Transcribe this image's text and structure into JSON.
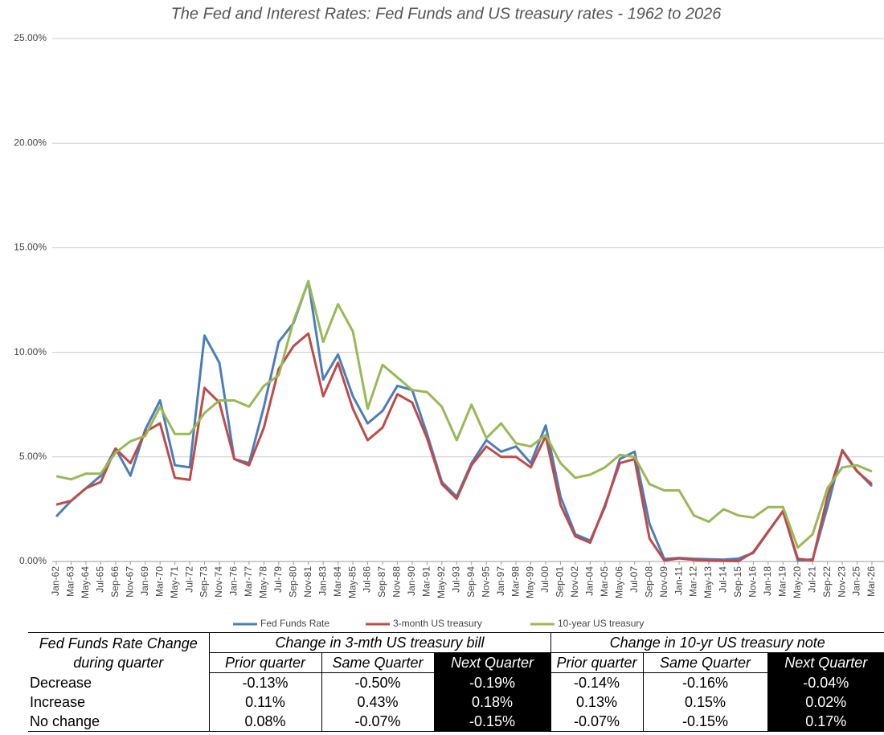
{
  "chart_data": {
    "type": "line",
    "title": "The Fed and Interest Rates: Fed Funds and US treasury rates - 1962 to 2026",
    "categories": [
      "Jan-62",
      "Mar-63",
      "May-64",
      "Jul-65",
      "Sep-66",
      "Nov-67",
      "Jan-69",
      "Mar-70",
      "May-71",
      "Jul-72",
      "Sep-73",
      "Nov-74",
      "Jan-76",
      "Mar-77",
      "May-78",
      "Jul-79",
      "Sep-80",
      "Nov-81",
      "Jan-83",
      "Mar-84",
      "May-85",
      "Jul-86",
      "Sep-87",
      "Nov-88",
      "Jan-90",
      "Mar-91",
      "May-92",
      "Jul-93",
      "Sep-94",
      "Nov-95",
      "Jan-97",
      "Mar-98",
      "May-99",
      "Jul-00",
      "Sep-01",
      "Nov-02",
      "Jan-04",
      "Mar-05",
      "May-06",
      "Jul-07",
      "Sep-08",
      "Nov-09",
      "Jan-11",
      "Mar-12",
      "May-13",
      "Jul-14",
      "Sep-15",
      "Nov-16",
      "Jan-18",
      "Mar-19",
      "May-20",
      "Jul-21",
      "Sep-22",
      "Nov-23",
      "Jan-25",
      "Mar-26"
    ],
    "series": [
      {
        "name": "Fed Funds Rate",
        "color": "#4a7ebb",
        "values": [
          2.15,
          2.9,
          3.5,
          4.1,
          5.4,
          4.1,
          6.3,
          7.7,
          4.6,
          4.5,
          10.8,
          9.5,
          4.9,
          4.7,
          7.4,
          10.5,
          11.4,
          13.4,
          8.7,
          9.9,
          7.9,
          6.6,
          7.2,
          8.4,
          8.2,
          6.1,
          3.8,
          3.1,
          4.7,
          5.8,
          5.25,
          5.5,
          4.7,
          6.5,
          3.1,
          1.3,
          1.0,
          2.6,
          4.9,
          5.25,
          1.8,
          0.12,
          0.17,
          0.13,
          0.11,
          0.09,
          0.14,
          0.41,
          1.41,
          2.41,
          0.05,
          0.1,
          2.6,
          5.33,
          4.33,
          3.6
        ]
      },
      {
        "name": "3-month  US treasury",
        "color": "#be4b48",
        "values": [
          2.72,
          2.9,
          3.5,
          3.8,
          5.4,
          4.7,
          6.2,
          6.6,
          4.0,
          3.9,
          8.3,
          7.6,
          4.9,
          4.6,
          6.4,
          9.2,
          10.3,
          10.9,
          7.9,
          9.5,
          7.3,
          5.8,
          6.4,
          8.0,
          7.6,
          5.9,
          3.7,
          3.0,
          4.6,
          5.5,
          5.0,
          5.0,
          4.5,
          6.0,
          2.7,
          1.2,
          0.9,
          2.7,
          4.7,
          4.9,
          1.1,
          0.05,
          0.15,
          0.08,
          0.04,
          0.03,
          0.02,
          0.45,
          1.43,
          2.4,
          0.13,
          0.05,
          3.1,
          5.3,
          4.3,
          3.7
        ]
      },
      {
        "name": "10-year US treasury",
        "color": "#98b954",
        "values": [
          4.08,
          3.93,
          4.2,
          4.2,
          5.2,
          5.75,
          6.0,
          7.4,
          6.1,
          6.1,
          7.1,
          7.7,
          7.7,
          7.4,
          8.4,
          8.9,
          11.5,
          13.4,
          10.5,
          12.3,
          11.0,
          7.3,
          9.4,
          8.8,
          8.2,
          8.1,
          7.4,
          5.8,
          7.5,
          5.9,
          6.6,
          5.65,
          5.5,
          6.05,
          4.7,
          4.0,
          4.15,
          4.5,
          5.1,
          5.0,
          3.7,
          3.4,
          3.4,
          2.2,
          1.9,
          2.5,
          2.2,
          2.1,
          2.6,
          2.6,
          0.67,
          1.3,
          3.5,
          4.5,
          4.6,
          4.3
        ]
      }
    ],
    "ylim": [
      0,
      25
    ],
    "yticks": [
      {
        "value": 0,
        "label": "0.00%"
      },
      {
        "value": 5,
        "label": "5.00%"
      },
      {
        "value": 10,
        "label": "10.00%"
      },
      {
        "value": 15,
        "label": "15.00%"
      },
      {
        "value": 20,
        "label": "20.00%"
      },
      {
        "value": 25,
        "label": "25.00%"
      }
    ],
    "grid": true,
    "legend": "bottom"
  },
  "table": {
    "header": [
      "Fed Funds Rate Change during quarter",
      "Change in 3-mth US treasury bill",
      "Change in 10-yr US treasury note"
    ],
    "subheader": [
      "Prior quarter",
      "Same Quarter",
      "Next Quarter",
      "Prior quarter",
      "Same Quarter",
      "Next Quarter"
    ],
    "rows": [
      [
        "Decrease",
        "-0.13%",
        "-0.50%",
        "-0.19%",
        "-0.14%",
        "-0.16%",
        "-0.04%"
      ],
      [
        "Increase",
        "0.11%",
        "0.43%",
        "0.18%",
        "0.13%",
        "0.15%",
        "0.02%"
      ],
      [
        "No change",
        "0.08%",
        "-0.07%",
        "-0.15%",
        "-0.07%",
        "-0.15%",
        "0.17%"
      ]
    ]
  }
}
